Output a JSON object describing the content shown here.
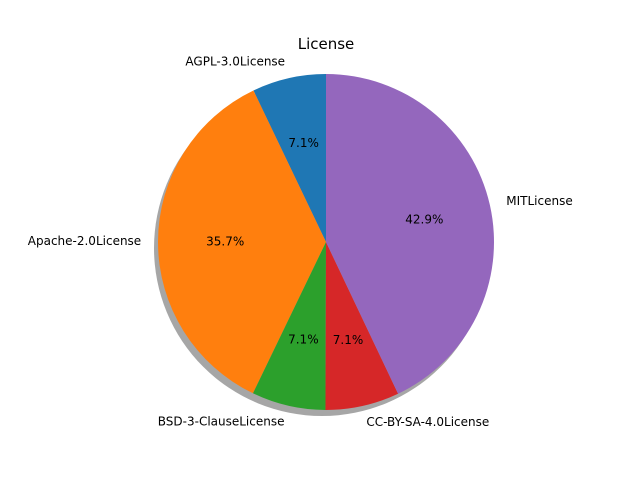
{
  "chart_data": {
    "type": "pie",
    "title": "License",
    "categories": [
      "AGPL-3.0License",
      "Apache-2.0License",
      "BSD-3-ClauseLicense",
      "CC-BY-SA-4.0License",
      "MITLicense"
    ],
    "values": [
      7.1,
      35.7,
      7.1,
      7.1,
      42.9
    ],
    "labels_pct": [
      "7.1%",
      "35.7%",
      "7.1%",
      "7.1%",
      "42.9%"
    ],
    "colors": [
      "#1f77b4",
      "#ff7f0e",
      "#2ca02c",
      "#d62728",
      "#9467bd"
    ],
    "start_angle_deg": 90,
    "direction": "counterclockwise",
    "shadow": true
  }
}
